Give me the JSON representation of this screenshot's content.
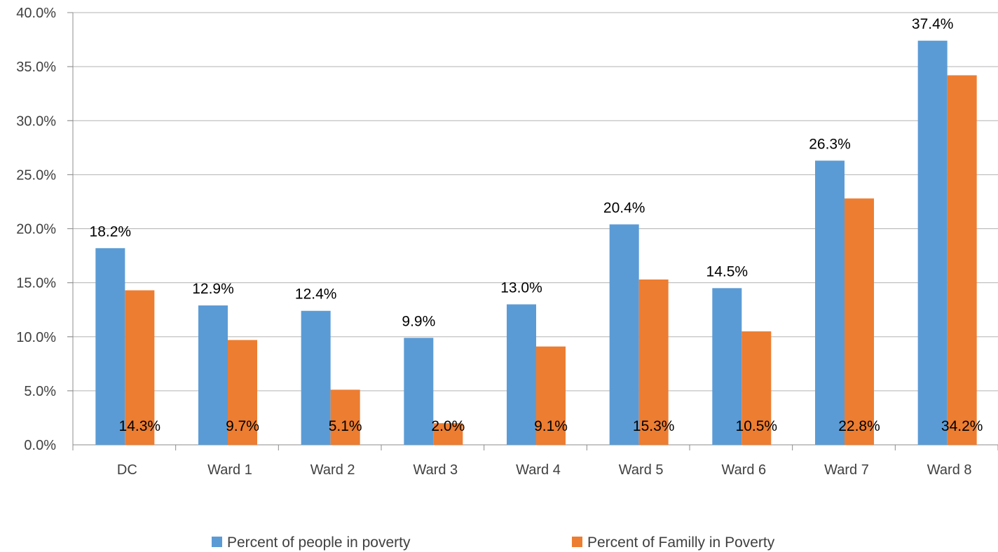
{
  "chart_data": {
    "type": "bar",
    "title": "",
    "xlabel": "",
    "ylabel": "",
    "categories": [
      "DC",
      "Ward 1",
      "Ward 2",
      "Ward 3",
      "Ward 4",
      "Ward 5",
      "Ward 6",
      "Ward 7",
      "Ward 8"
    ],
    "series": [
      {
        "name": "Percent of people in poverty",
        "color": "#5B9BD5",
        "values": [
          18.2,
          12.9,
          12.4,
          9.9,
          13.0,
          20.4,
          14.5,
          26.3,
          37.4
        ],
        "labels": [
          "18.2%",
          "12.9%",
          "12.4%",
          "9.9%",
          "13.0%",
          "20.4%",
          "14.5%",
          "26.3%",
          "37.4%"
        ]
      },
      {
        "name": "Percent of Familly in Poverty",
        "color": "#ED7D31",
        "values": [
          14.3,
          9.7,
          5.1,
          2.0,
          9.1,
          15.3,
          10.5,
          22.8,
          34.2
        ],
        "labels": [
          "14.3%",
          "9.7%",
          "5.1%",
          "2.0%",
          "9.1%",
          "15.3%",
          "10.5%",
          "22.8%",
          "34.2%"
        ]
      }
    ],
    "ylim": [
      0,
      40
    ],
    "yticks": [
      0,
      5,
      10,
      15,
      20,
      25,
      30,
      35,
      40
    ],
    "ytick_labels": [
      "0.0%",
      "5.0%",
      "10.0%",
      "15.0%",
      "20.0%",
      "25.0%",
      "30.0%",
      "35.0%",
      "40.0%"
    ],
    "grid": true,
    "legend_position": "bottom"
  }
}
